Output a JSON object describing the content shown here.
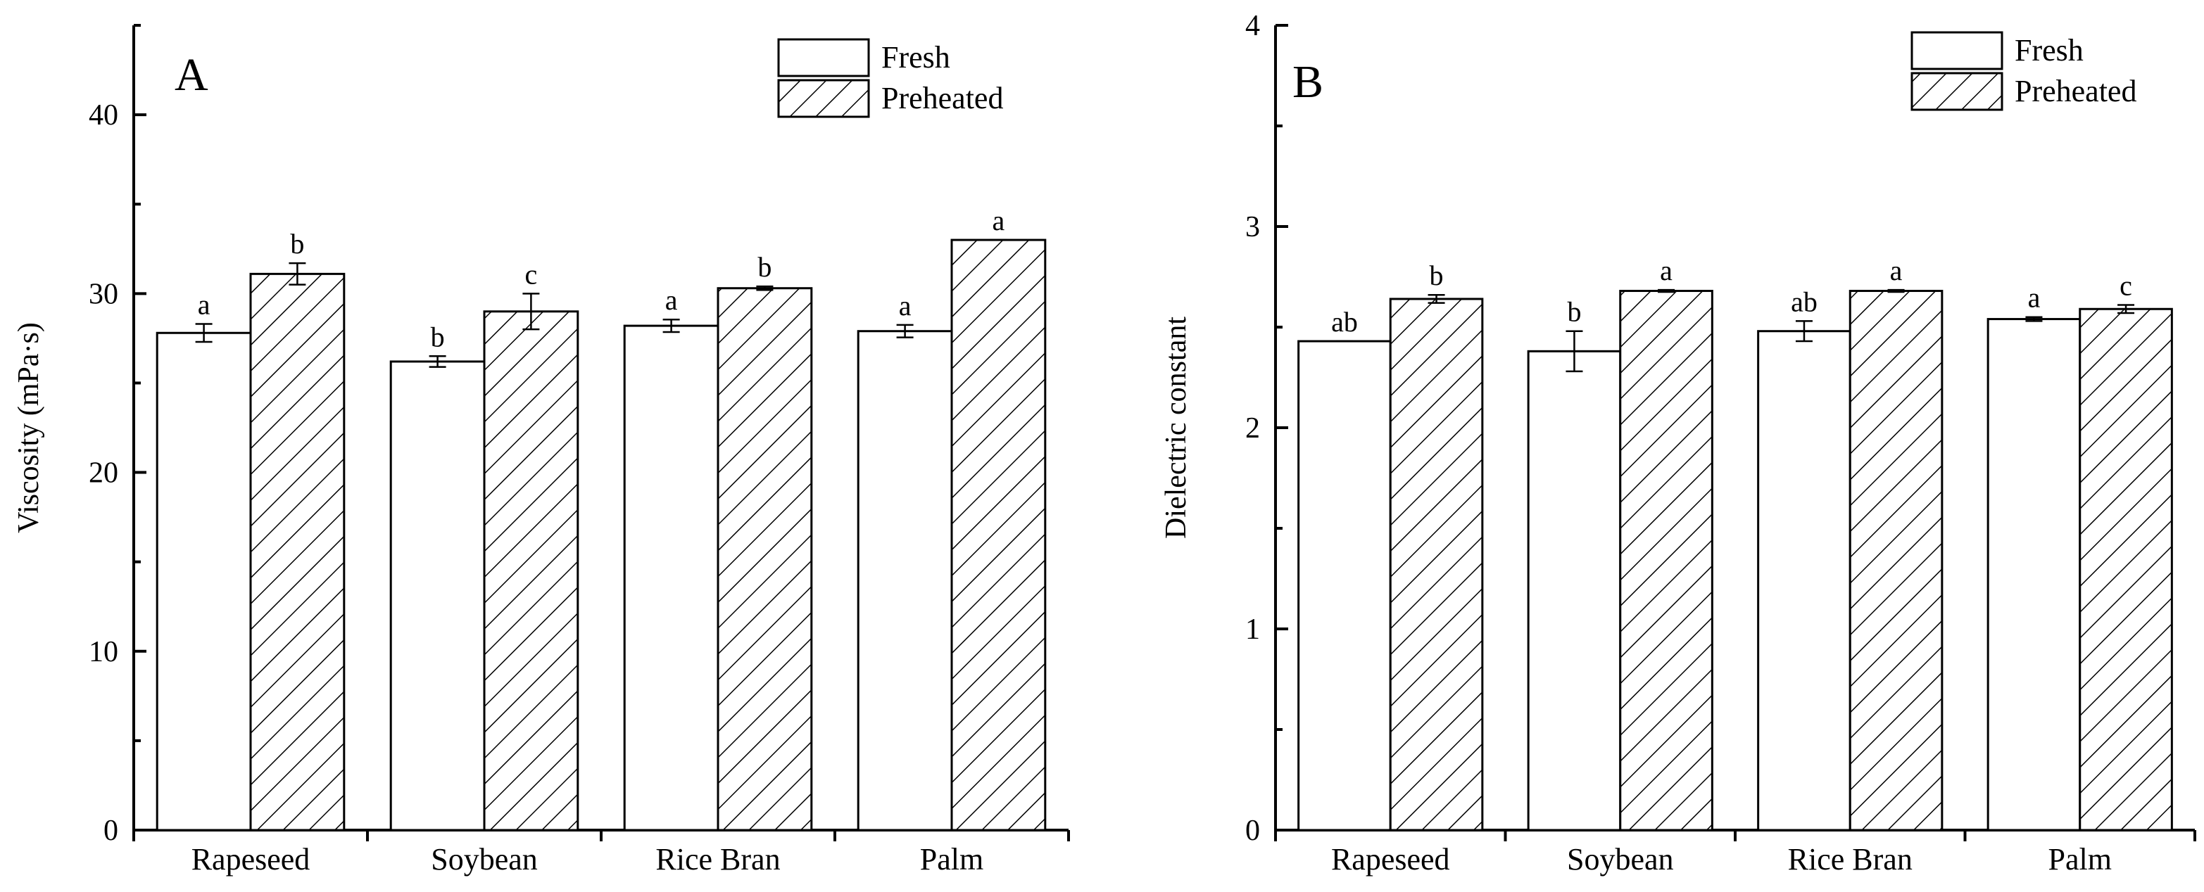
{
  "chart_data": [
    {
      "type": "bar",
      "panel_label": "A",
      "ylabel": "Viscosity (mPa·s)",
      "xlabel": "",
      "ylim": [
        0,
        45
      ],
      "yticks": [
        0,
        10,
        20,
        30,
        40
      ],
      "categories": [
        "Rapeseed",
        "Soybean",
        "Rice Bran",
        "Palm"
      ],
      "legend_position": "top-right",
      "series": [
        {
          "name": "Fresh",
          "pattern": "none",
          "values": [
            27.8,
            26.2,
            28.2,
            27.9
          ],
          "errors": [
            0.5,
            0.3,
            0.35,
            0.35
          ],
          "labels": [
            "a",
            "b",
            "a",
            "a"
          ]
        },
        {
          "name": "Preheated",
          "pattern": "hatch",
          "values": [
            31.1,
            29.0,
            30.3,
            33.0
          ],
          "errors": [
            0.6,
            1.0,
            0.1,
            0.0
          ],
          "labels": [
            "b",
            "c",
            "b",
            "a"
          ]
        }
      ]
    },
    {
      "type": "bar",
      "panel_label": "B",
      "ylabel": "Dielectric constant",
      "xlabel": "",
      "ylim": [
        0,
        4
      ],
      "yticks": [
        0,
        1,
        2,
        3,
        4
      ],
      "categories": [
        "Rapeseed",
        "Soybean",
        "Rice Bran",
        "Palm"
      ],
      "legend_position": "top-right",
      "series": [
        {
          "name": "Fresh",
          "pattern": "none",
          "values": [
            2.43,
            2.38,
            2.48,
            2.54
          ],
          "errors": [
            0.0,
            0.1,
            0.05,
            0.01
          ],
          "labels": [
            "ab",
            "b",
            "ab",
            "a"
          ]
        },
        {
          "name": "Preheated",
          "pattern": "hatch",
          "values": [
            2.64,
            2.68,
            2.68,
            2.59
          ],
          "errors": [
            0.02,
            0.005,
            0.005,
            0.02
          ],
          "labels": [
            "b",
            "a",
            "a",
            "c"
          ]
        }
      ]
    }
  ]
}
